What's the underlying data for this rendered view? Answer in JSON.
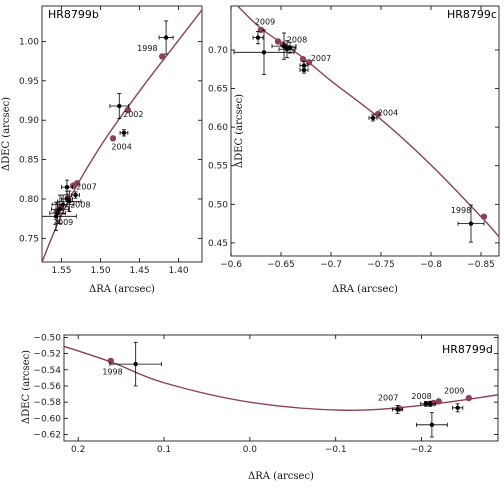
{
  "chart_data": [
    {
      "type": "scatter",
      "title": "HR8799b",
      "xlabel": "ΔRA (arcsec)",
      "ylabel": "ΔDEC (arcsec)",
      "xlim": [
        1.575,
        1.37
      ],
      "ylim": [
        0.72,
        1.045
      ],
      "x_ticks": [
        1.55,
        1.5,
        1.45,
        1.4
      ],
      "x_tick_labels": [
        "1.55",
        "1.50",
        "1.45",
        "1.40"
      ],
      "y_ticks": [
        0.75,
        0.8,
        0.85,
        0.9,
        0.95,
        1.0
      ],
      "y_tick_labels": [
        "0.75",
        "0.80",
        "0.85",
        "0.90",
        "0.95",
        "1.00"
      ],
      "orbit_curve": [
        [
          1.575,
          0.72
        ],
        [
          1.545,
          0.79
        ],
        [
          1.5,
          0.867
        ],
        [
          1.45,
          0.937
        ],
        [
          1.42,
          0.976
        ],
        [
          1.37,
          1.04
        ]
      ],
      "predicted": [
        [
          1.535,
          0.817
        ],
        [
          1.53,
          0.82
        ],
        [
          1.542,
          0.801
        ],
        [
          1.551,
          0.789
        ],
        [
          1.556,
          0.784
        ],
        [
          1.484,
          0.877
        ],
        [
          1.465,
          0.913
        ],
        [
          1.421,
          0.981
        ]
      ],
      "observations": [
        {
          "x": 1.416,
          "y": 1.005,
          "xerr": 0.009,
          "yerr": 0.021
        },
        {
          "x": 1.476,
          "y": 0.918,
          "xerr": 0.012,
          "yerr": 0.016
        },
        {
          "x": 1.47,
          "y": 0.884,
          "xerr": 0.005,
          "yerr": 0.004
        },
        {
          "x": 1.543,
          "y": 0.815,
          "xerr": 0.007,
          "yerr": 0.009
        },
        {
          "x": 1.532,
          "y": 0.805,
          "xerr": 0.005,
          "yerr": 0.004
        },
        {
          "x": 1.543,
          "y": 0.8,
          "xerr": 0.007,
          "yerr": 0.01
        },
        {
          "x": 1.54,
          "y": 0.797,
          "xerr": 0.015,
          "yerr": 0.013
        },
        {
          "x": 1.548,
          "y": 0.793,
          "xerr": 0.014,
          "yerr": 0.012
        },
        {
          "x": 1.552,
          "y": 0.787,
          "xerr": 0.011,
          "yerr": 0.018
        },
        {
          "x": 1.555,
          "y": 0.782,
          "xerr": 0.01,
          "yerr": 0.013
        },
        {
          "x": 1.557,
          "y": 0.778,
          "xerr": 0.026,
          "yerr": 0.018
        }
      ],
      "epoch_labels": [
        {
          "text": "1998",
          "x": 1.44,
          "y": 0.988
        },
        {
          "text": "2002",
          "x": 1.458,
          "y": 0.904
        },
        {
          "text": "2004",
          "x": 1.473,
          "y": 0.863
        },
        {
          "text": "2007",
          "x": 1.518,
          "y": 0.812
        },
        {
          "text": "2008",
          "x": 1.526,
          "y": 0.789
        },
        {
          "text": "2009",
          "x": 1.548,
          "y": 0.767
        }
      ]
    },
    {
      "type": "scatter",
      "title": "HR8799c",
      "xlabel": "ΔRA (arcsec)",
      "ylabel": "ΔDEC (arcsec)",
      "xlim": [
        -0.6,
        -0.868
      ],
      "ylim": [
        0.433,
        0.757
      ],
      "x_ticks": [
        -0.6,
        -0.65,
        -0.7,
        -0.75,
        -0.8,
        -0.85
      ],
      "x_tick_labels": [
        "−0.6",
        "−0.65",
        "−0.7",
        "−0.75",
        "−0.8",
        "−0.85"
      ],
      "y_ticks": [
        0.45,
        0.5,
        0.55,
        0.6,
        0.65,
        0.7
      ],
      "y_tick_labels": [
        "0.45",
        "0.50",
        "0.55",
        "0.60",
        "0.65",
        "0.70"
      ],
      "orbit_curve": [
        [
          -0.6,
          0.766
        ],
        [
          -0.63,
          0.728
        ],
        [
          -0.67,
          0.692
        ],
        [
          -0.7,
          0.66
        ],
        [
          -0.75,
          0.61
        ],
        [
          -0.8,
          0.551
        ],
        [
          -0.85,
          0.484
        ],
        [
          -0.868,
          0.458
        ]
      ],
      "predicted": [
        [
          -0.63,
          0.726
        ],
        [
          -0.647,
          0.711
        ],
        [
          -0.652,
          0.707
        ],
        [
          -0.655,
          0.704
        ],
        [
          -0.672,
          0.688
        ],
        [
          -0.678,
          0.684
        ],
        [
          -0.747,
          0.617
        ],
        [
          -0.853,
          0.484
        ]
      ],
      "observations": [
        {
          "x": -0.627,
          "y": 0.716,
          "xerr": 0.005,
          "yerr": 0.008
        },
        {
          "x": -0.633,
          "y": 0.697,
          "xerr": 0.03,
          "yerr": 0.029
        },
        {
          "x": -0.653,
          "y": 0.705,
          "xerr": 0.012,
          "yerr": 0.017
        },
        {
          "x": -0.656,
          "y": 0.701,
          "xerr": 0.008,
          "yerr": 0.011
        },
        {
          "x": -0.659,
          "y": 0.703,
          "xerr": 0.006,
          "yerr": 0.007
        },
        {
          "x": -0.673,
          "y": 0.68,
          "xerr": 0.004,
          "yerr": 0.005
        },
        {
          "x": -0.673,
          "y": 0.674,
          "xerr": 0.004,
          "yerr": 0.004
        },
        {
          "x": -0.742,
          "y": 0.612,
          "xerr": 0.004,
          "yerr": 0.004
        },
        {
          "x": -0.84,
          "y": 0.475,
          "xerr": 0.013,
          "yerr": 0.024
        }
      ],
      "epoch_labels": [
        {
          "text": "2009",
          "x": -0.634,
          "y": 0.733
        },
        {
          "text": "2008",
          "x": -0.666,
          "y": 0.71
        },
        {
          "text": "2007",
          "x": -0.69,
          "y": 0.686
        },
        {
          "text": "2004",
          "x": -0.757,
          "y": 0.615
        },
        {
          "text": "1998",
          "x": -0.83,
          "y": 0.489
        }
      ]
    },
    {
      "type": "scatter",
      "title": "HR8799d",
      "xlabel": "ΔRA (arcsec)",
      "ylabel": "ΔDEC (arcsec)",
      "xlim": [
        0.2165,
        -0.289
      ],
      "ylim": [
        -0.628,
        -0.497
      ],
      "x_ticks": [
        0.2,
        0.1,
        0.0,
        -0.1,
        -0.2
      ],
      "x_tick_labels": [
        "0.2",
        "0.1",
        "0.0",
        "−0.1",
        "−0.2"
      ],
      "y_ticks": [
        -0.62,
        -0.6,
        -0.58,
        -0.56,
        -0.54,
        -0.52,
        -0.5
      ],
      "y_tick_labels": [
        "−0.62",
        "−0.60",
        "−0.58",
        "−0.56",
        "−0.54",
        "−0.52",
        "−0.50"
      ],
      "orbit_curve": [
        [
          0.2165,
          -0.511
        ],
        [
          0.16,
          -0.531
        ],
        [
          0.1,
          -0.556
        ],
        [
          0.0,
          -0.58
        ],
        [
          -0.11,
          -0.59
        ],
        [
          -0.2,
          -0.584
        ],
        [
          -0.289,
          -0.571
        ]
      ],
      "predicted": [
        [
          0.162,
          -0.529
        ],
        [
          -0.174,
          -0.588
        ],
        [
          -0.21,
          -0.582
        ],
        [
          -0.214,
          -0.581
        ],
        [
          -0.22,
          -0.579
        ],
        [
          -0.255,
          -0.575
        ]
      ],
      "observations": [
        {
          "x": 0.133,
          "y": -0.533,
          "xerr": 0.03,
          "yerr": 0.027
        },
        {
          "x": -0.172,
          "y": -0.589,
          "xerr": 0.006,
          "yerr": 0.005
        },
        {
          "x": -0.205,
          "y": -0.582,
          "xerr": 0.006,
          "yerr": 0.003
        },
        {
          "x": -0.21,
          "y": -0.582,
          "xerr": 0.006,
          "yerr": 0.003
        },
        {
          "x": -0.212,
          "y": -0.608,
          "xerr": 0.018,
          "yerr": 0.015
        },
        {
          "x": -0.242,
          "y": -0.587,
          "xerr": 0.006,
          "yerr": 0.005
        }
      ],
      "epoch_labels": [
        {
          "text": "1998",
          "x": 0.16,
          "y": -0.546
        },
        {
          "text": "2007",
          "x": -0.161,
          "y": -0.578
        },
        {
          "text": "2008",
          "x": -0.2,
          "y": -0.576
        },
        {
          "text": "2009",
          "x": -0.238,
          "y": -0.569
        }
      ]
    }
  ]
}
